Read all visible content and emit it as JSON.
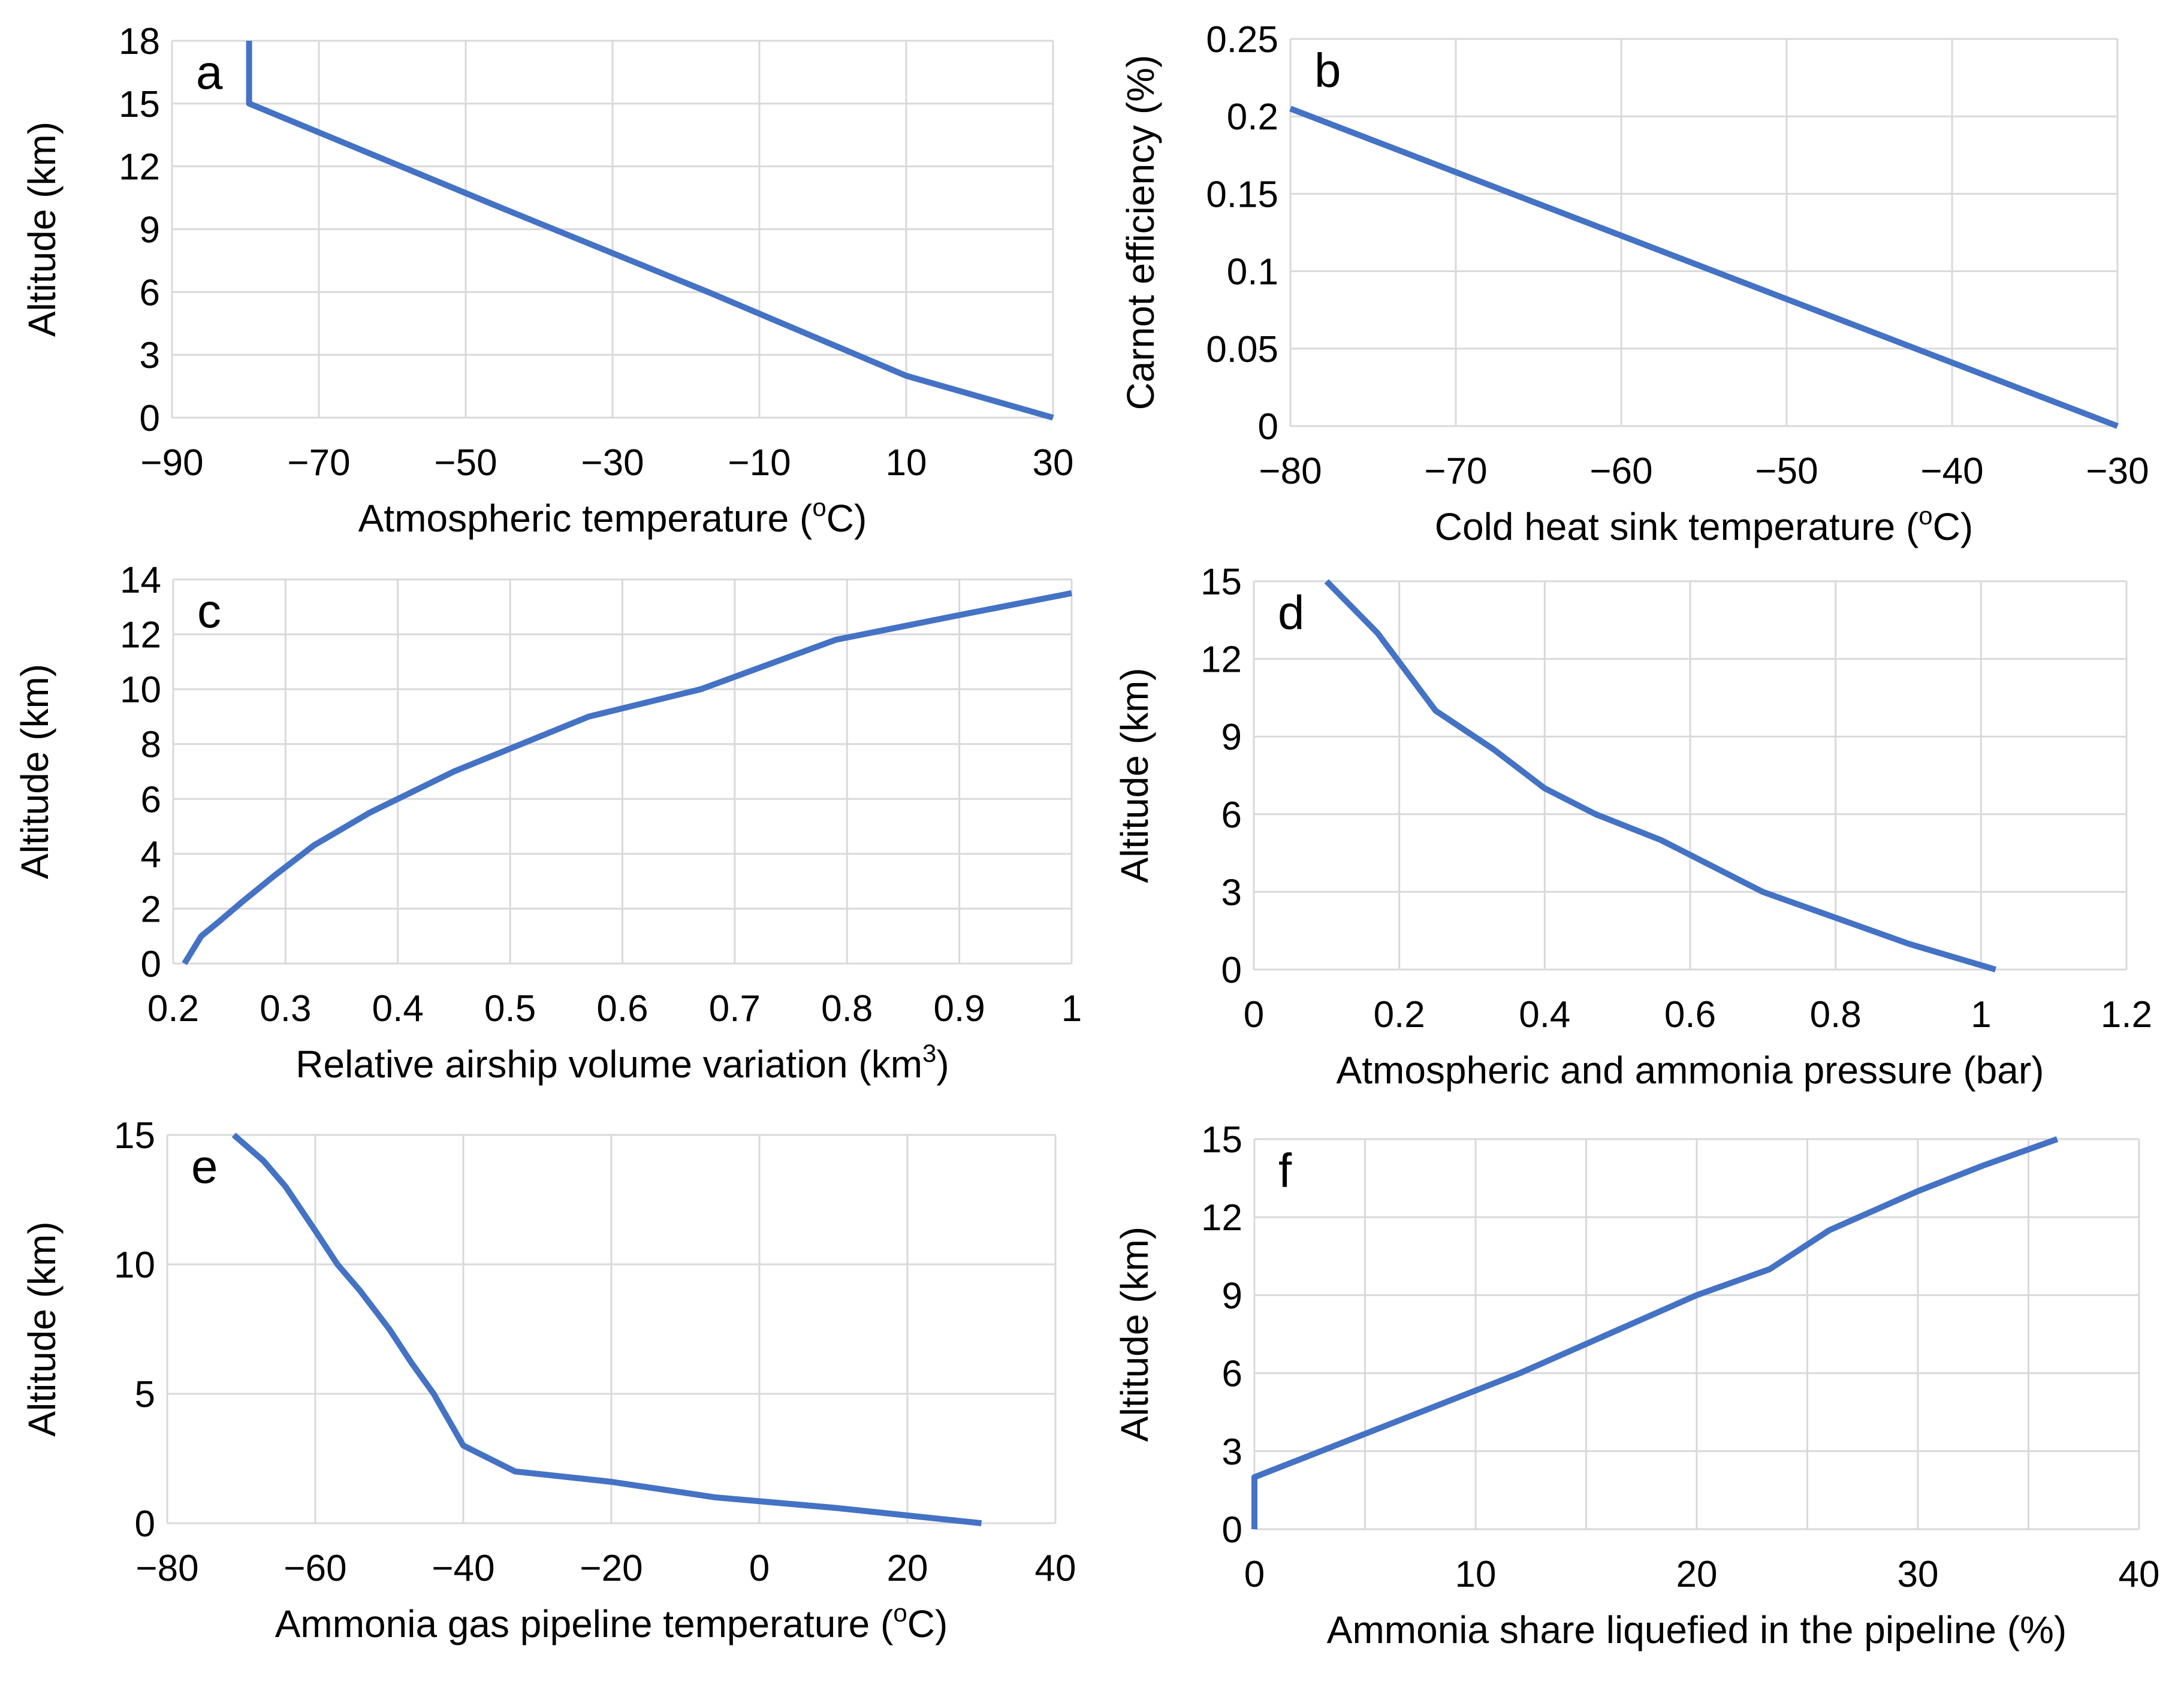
{
  "figure": {
    "line_color": "#4472C4",
    "grid_color": "#D9D9D9"
  },
  "chart_data": [
    {
      "panel": "a",
      "type": "line",
      "xlabel": "Atmospheric temperature (°C)",
      "xlabel_main": "Atmospheric temperature (",
      "xlabel_sup": "o",
      "xlabel_end": "C)",
      "ylabel": "Altitude (km)",
      "xlim": [
        -90,
        30
      ],
      "ylim": [
        0,
        18
      ],
      "xticks": [
        -90,
        -70,
        -50,
        -30,
        -10,
        10,
        30
      ],
      "yticks": [
        0,
        3,
        6,
        9,
        12,
        15,
        18
      ],
      "xgrid": [
        -90,
        -70,
        -50,
        -30,
        -10,
        10,
        30
      ],
      "ygrid": [
        0,
        3,
        6,
        9,
        12,
        15,
        18
      ],
      "xtick_labels": [
        "−90",
        "−70",
        "−50",
        "−30",
        "−10",
        "10",
        "30"
      ],
      "ytick_labels": [
        "0",
        "3",
        "6",
        "9",
        "12",
        "15",
        "18"
      ],
      "series": [
        {
          "name": "Atmospheric temperature",
          "x": [
            -79.5,
            -79.5,
            -45,
            -17,
            10,
            30
          ],
          "y": [
            18,
            15,
            10,
            6,
            2,
            0
          ]
        }
      ]
    },
    {
      "panel": "b",
      "type": "line",
      "xlabel": "Cold heat sink temperature (°C)",
      "xlabel_main": "Cold heat sink temperature (",
      "xlabel_sup": "o",
      "xlabel_end": "C)",
      "ylabel": "Carnot efficiency (%)",
      "xlim": [
        -80,
        -30
      ],
      "ylim": [
        0,
        0.25
      ],
      "xticks": [
        -80,
        -70,
        -60,
        -50,
        -40,
        -30
      ],
      "yticks": [
        0,
        0.05,
        0.1,
        0.15,
        0.2,
        0.25
      ],
      "xgrid": [
        -80,
        -70,
        -60,
        -50,
        -40,
        -30
      ],
      "ygrid": [
        0,
        0.05,
        0.1,
        0.15,
        0.2,
        0.25
      ],
      "xtick_labels": [
        "−80",
        "−70",
        "−60",
        "−50",
        "−40",
        "−30"
      ],
      "ytick_labels": [
        "0",
        "0.05",
        "0.1",
        "0.15",
        "0.2",
        "0.25"
      ],
      "series": [
        {
          "name": "Carnot efficiency",
          "x": [
            -80,
            -30
          ],
          "y": [
            0.205,
            0
          ]
        }
      ]
    },
    {
      "panel": "c",
      "type": "line",
      "xlabel": "Relative airship volume variation (km³)",
      "xlabel_main": "Relative airship volume variation (km",
      "xlabel_sup": "3",
      "xlabel_end": ")",
      "ylabel": "Altitude (km)",
      "xlim": [
        0.2,
        1
      ],
      "ylim": [
        0,
        14
      ],
      "xticks": [
        0.2,
        0.3,
        0.4,
        0.5,
        0.6,
        0.7,
        0.8,
        0.9,
        1
      ],
      "yticks": [
        0,
        2,
        4,
        6,
        8,
        10,
        12,
        14
      ],
      "xgrid": [
        0.2,
        0.3,
        0.4,
        0.5,
        0.6,
        0.7,
        0.8,
        0.9,
        1
      ],
      "ygrid": [
        0,
        2,
        4,
        6,
        8,
        10,
        12,
        14
      ],
      "xtick_labels": [
        "0.2",
        "0.3",
        "0.4",
        "0.5",
        "0.6",
        "0.7",
        "0.8",
        "0.9",
        "1"
      ],
      "ytick_labels": [
        "0",
        "2",
        "4",
        "6",
        "8",
        "10",
        "12",
        "14"
      ],
      "series": [
        {
          "name": "Relative volume",
          "x": [
            0.21,
            0.225,
            0.24,
            0.26,
            0.29,
            0.325,
            0.375,
            0.45,
            0.57,
            0.67,
            0.79,
            0.9,
            1.0
          ],
          "y": [
            0,
            1,
            1.5,
            2.2,
            3.2,
            4.3,
            5.5,
            7,
            9,
            10,
            11.8,
            12.7,
            13.5
          ]
        }
      ]
    },
    {
      "panel": "d",
      "type": "line",
      "xlabel": "Atmospheric and ammonia pressure (bar)",
      "ylabel": "Altitude (km)",
      "xlim": [
        0,
        1.2
      ],
      "ylim": [
        0,
        15
      ],
      "xticks": [
        0,
        0.2,
        0.4,
        0.6,
        0.8,
        1,
        1.2
      ],
      "yticks": [
        0,
        3,
        6,
        9,
        12,
        15
      ],
      "xgrid": [
        0,
        0.2,
        0.4,
        0.6,
        0.8,
        1,
        1.2
      ],
      "ygrid": [
        0,
        3,
        6,
        9,
        12,
        15
      ],
      "xtick_labels": [
        "0",
        "0.2",
        "0.4",
        "0.6",
        "0.8",
        "1",
        "1.2"
      ],
      "ytick_labels": [
        "0",
        "3",
        "6",
        "9",
        "12",
        "15"
      ],
      "series": [
        {
          "name": "Pressure",
          "x": [
            0.1,
            0.17,
            0.25,
            0.33,
            0.4,
            0.47,
            0.56,
            0.7,
            0.8,
            0.9,
            1.02
          ],
          "y": [
            15,
            13,
            10,
            8.5,
            7,
            6,
            5,
            3,
            2,
            1,
            0
          ]
        }
      ]
    },
    {
      "panel": "e",
      "type": "line",
      "xlabel": "Ammonia gas pipeline temperature (°C)",
      "xlabel_main": "Ammonia gas pipeline temperature (",
      "xlabel_sup": "o",
      "xlabel_end": "C)",
      "ylabel": "Altitude (km)",
      "xlim": [
        -80,
        40
      ],
      "ylim": [
        0,
        15
      ],
      "xticks": [
        -80,
        -60,
        -40,
        -20,
        0,
        20,
        40
      ],
      "yticks": [
        0,
        5,
        10,
        15
      ],
      "xgrid": [
        -80,
        -60,
        -40,
        -20,
        0,
        20,
        40
      ],
      "ygrid": [
        0,
        5,
        10,
        15
      ],
      "xtick_labels": [
        "−80",
        "−60",
        "−40",
        "−20",
        "0",
        "20",
        "40"
      ],
      "ytick_labels": [
        "0",
        "5",
        "10",
        "15"
      ],
      "series": [
        {
          "name": "Pipeline temperature",
          "x": [
            -71,
            -67,
            -64,
            -60,
            -57,
            -54,
            -50,
            -47,
            -44,
            -40,
            -33,
            -20,
            -6,
            10,
            30
          ],
          "y": [
            15,
            14,
            13,
            11.3,
            10,
            9,
            7.5,
            6.2,
            5,
            3,
            2,
            1.6,
            1,
            0.6,
            0
          ]
        }
      ]
    },
    {
      "panel": "f",
      "type": "line",
      "xlabel": "Ammonia share liquefied in the pipeline (%)",
      "ylabel": "Altitude (km)",
      "xlim": [
        0,
        40
      ],
      "ylim": [
        0,
        15
      ],
      "xticks": [
        0,
        10,
        20,
        30,
        40
      ],
      "yticks": [
        0,
        3,
        6,
        9,
        12,
        15
      ],
      "xgrid": [
        0,
        5,
        10,
        15,
        20,
        25,
        30,
        35,
        40
      ],
      "ygrid": [
        0,
        3,
        6,
        9,
        12,
        15
      ],
      "xtick_labels": [
        "0",
        "10",
        "20",
        "30",
        "40"
      ],
      "ytick_labels": [
        "0",
        "3",
        "6",
        "9",
        "12",
        "15"
      ],
      "series": [
        {
          "name": "Liquefied share",
          "x": [
            0,
            0,
            3,
            6,
            9,
            12,
            16,
            20,
            23.3,
            26,
            30,
            33,
            36.3
          ],
          "y": [
            0,
            2,
            3,
            4,
            5,
            6,
            7.5,
            9,
            10,
            11.5,
            13,
            14,
            15
          ]
        }
      ]
    }
  ]
}
